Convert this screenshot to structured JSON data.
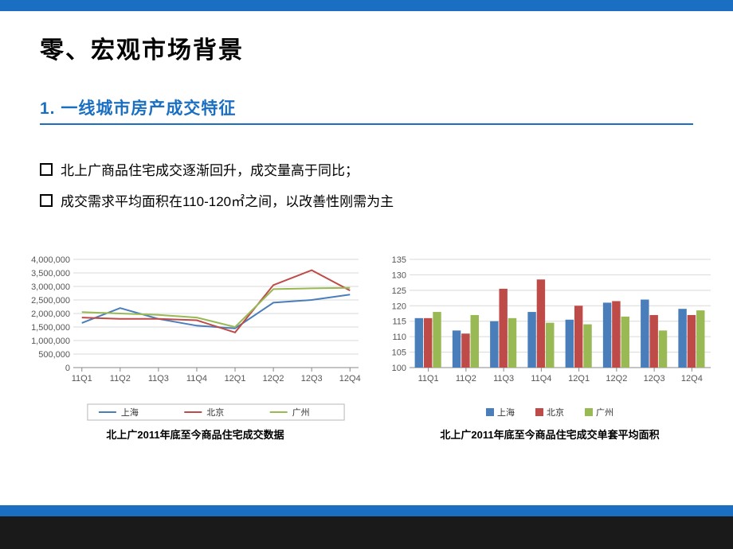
{
  "titles": {
    "main": "零、宏观市场背景",
    "sub": "1. 一线城市房产成交特征"
  },
  "bullets": [
    "北上广商品住宅成交逐渐回升，成交量高于同比；",
    "成交需求平均面积在110-120㎡之间，以改善性刚需为主"
  ],
  "line_chart": {
    "type": "line",
    "caption": "北上广2011年底至今商品住宅成交数据",
    "categories": [
      "11Q1",
      "11Q2",
      "11Q3",
      "11Q4",
      "12Q1",
      "12Q2",
      "12Q3",
      "12Q4"
    ],
    "series": [
      {
        "name": "上海",
        "color": "#4a7ebb",
        "values": [
          1650000,
          2200000,
          1800000,
          1550000,
          1450000,
          2400000,
          2500000,
          2700000
        ]
      },
      {
        "name": "北京",
        "color": "#be4b48",
        "values": [
          1850000,
          1800000,
          1800000,
          1750000,
          1300000,
          3050000,
          3600000,
          2850000
        ]
      },
      {
        "name": "广州",
        "color": "#98b954",
        "values": [
          2050000,
          2000000,
          1950000,
          1850000,
          1500000,
          2900000,
          2930000,
          2950000
        ]
      }
    ],
    "ylim": [
      0,
      4000000
    ],
    "ytick_step": 500000,
    "label_fontsize": 11,
    "line_width": 2,
    "background": "#ffffff",
    "grid_color": "#d9d9d9"
  },
  "bar_chart": {
    "type": "bar",
    "caption": "北上广2011年底至今商品住宅成交单套平均面积",
    "categories": [
      "11Q1",
      "11Q2",
      "11Q3",
      "11Q4",
      "12Q1",
      "12Q2",
      "12Q3",
      "12Q4"
    ],
    "series": [
      {
        "name": "上海",
        "color": "#4a7ebb",
        "values": [
          116,
          112,
          115,
          118,
          115.5,
          121,
          122,
          119
        ]
      },
      {
        "name": "北京",
        "color": "#be4b48",
        "values": [
          116,
          111,
          125.5,
          128.5,
          120,
          121.5,
          117,
          117
        ]
      },
      {
        "name": "广州",
        "color": "#98b954",
        "values": [
          118,
          117,
          116,
          114.5,
          114,
          116.5,
          112,
          118.5
        ]
      }
    ],
    "ylim": [
      100,
      135
    ],
    "ytick_step": 5,
    "label_fontsize": 11,
    "bar_group_width": 0.72,
    "background": "#ffffff",
    "grid_color": "#d9d9d9"
  },
  "legend_box": {
    "border": "#b7b7b7",
    "fill": "#ffffff"
  },
  "accent": "#1b6fc2"
}
